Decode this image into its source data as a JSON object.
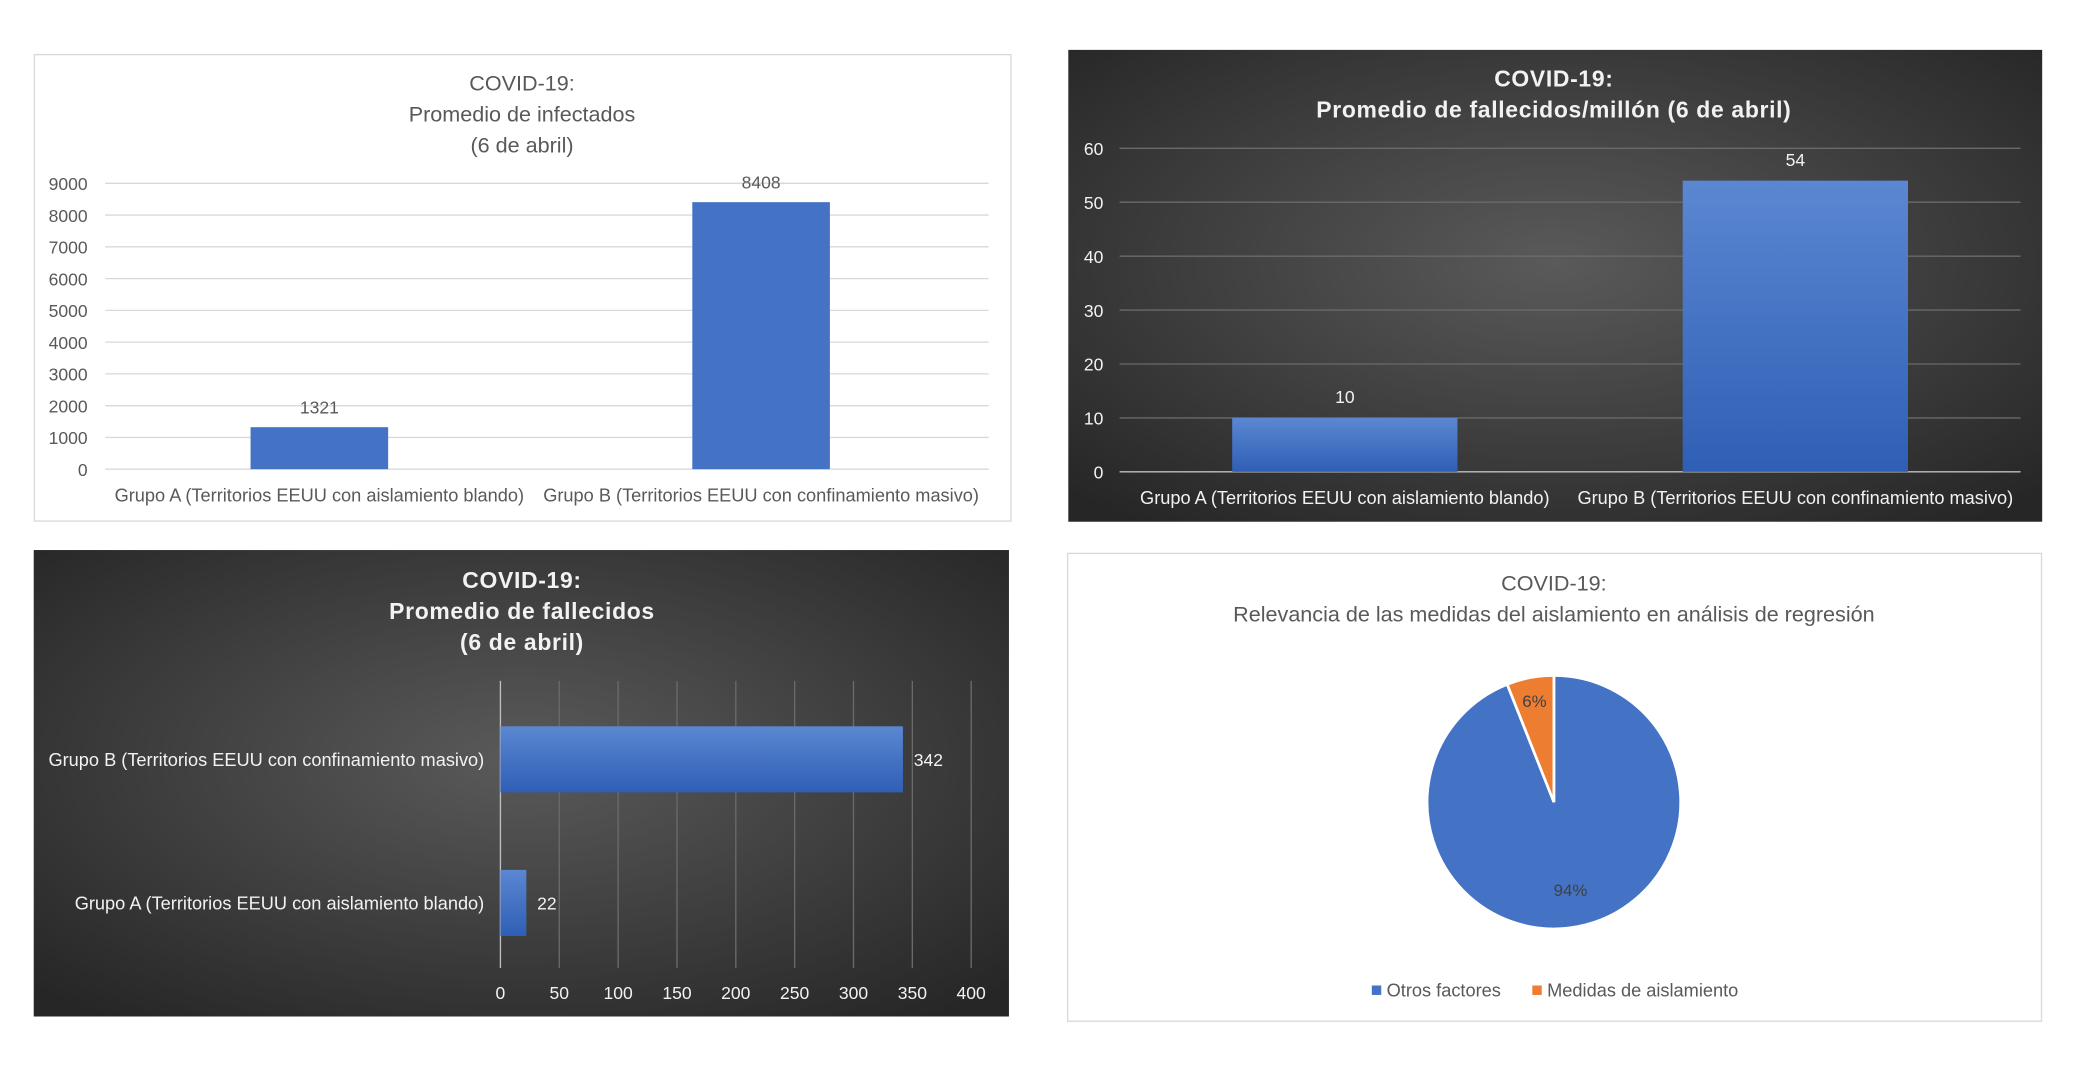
{
  "colors": {
    "bar": "#4472c4",
    "orange": "#ed7d31",
    "dark_bg": "#3a3a3a",
    "grid_light": "#d9d9d9",
    "grid_dark": "#6a6a6a"
  },
  "chart_data": [
    {
      "type": "bar",
      "title": [
        "COVID-19:",
        "Promedio de infectados",
        "(6 de abril)"
      ],
      "categories": [
        "Grupo A (Territorios EEUU con aislamiento blando)",
        "Grupo B (Territorios EEUU con confinamiento masivo)"
      ],
      "values": [
        1321,
        8408
      ],
      "data_labels": [
        "1321",
        "8408"
      ],
      "ylim": [
        0,
        9000
      ],
      "yticks": [
        "0",
        "1000",
        "2000",
        "3000",
        "4000",
        "5000",
        "6000",
        "7000",
        "8000",
        "9000"
      ],
      "grid": true,
      "theme": "light"
    },
    {
      "type": "bar",
      "title": [
        "COVID-19:",
        "Promedio de fallecidos/millón  (6 de abril)"
      ],
      "categories": [
        "Grupo A (Territorios EEUU con aislamiento blando)",
        "Grupo B (Territorios EEUU con confinamiento masivo)"
      ],
      "values": [
        10,
        54
      ],
      "data_labels": [
        "10",
        "54"
      ],
      "ylim": [
        0,
        60
      ],
      "yticks": [
        "0",
        "10",
        "20",
        "30",
        "40",
        "50",
        "60"
      ],
      "grid": true,
      "theme": "dark"
    },
    {
      "type": "bar",
      "orientation": "horizontal",
      "title": [
        "COVID-19:",
        "Promedio de fallecidos",
        "(6 de abril)"
      ],
      "categories": [
        "Grupo B (Territorios EEUU con confinamiento masivo)",
        "Grupo A (Territorios EEUU con aislamiento blando)"
      ],
      "values": [
        342,
        22
      ],
      "data_labels": [
        "342",
        "22"
      ],
      "xlim": [
        0,
        400
      ],
      "xticks": [
        "0",
        "50",
        "100",
        "150",
        "200",
        "250",
        "300",
        "350",
        "400"
      ],
      "grid": true,
      "theme": "dark"
    },
    {
      "type": "pie",
      "title": [
        "COVID-19:",
        "Relevancia de las medidas del aislamiento en análisis de regresión"
      ],
      "labels": [
        "Otros factores",
        "Medidas de aislamiento"
      ],
      "values": [
        94,
        6
      ],
      "data_labels": [
        "94%",
        "6%"
      ],
      "colors": [
        "#4472c4",
        "#ed7d31"
      ],
      "legend": "bottom",
      "theme": "light"
    }
  ]
}
